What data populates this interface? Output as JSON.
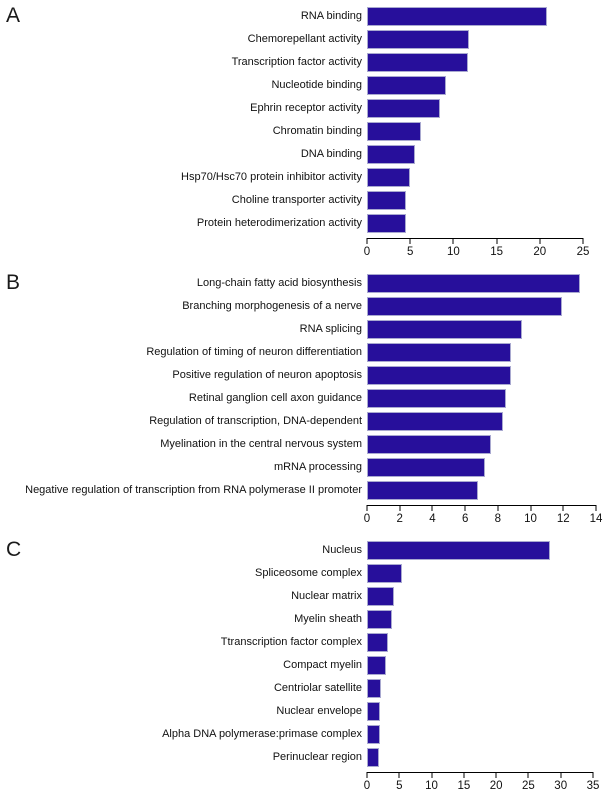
{
  "figure": {
    "background": "#ffffff",
    "bar_color": "#270f9b",
    "bar_border_color": "#a9a9d0",
    "axis_color": "#000000",
    "text_color": "#111111"
  },
  "chart_data": [
    {
      "type": "bar",
      "panel": "A",
      "orientation": "horizontal",
      "title": "",
      "xlabel": "",
      "ylabel": "",
      "grid": false,
      "legend": "none",
      "xlim": [
        0,
        25
      ],
      "xticks": [
        0,
        5,
        10,
        15,
        20,
        25
      ],
      "categories": [
        "RNA binding",
        "Chemorepellant activity",
        "Transcription factor activity",
        "Nucleotide binding",
        "Ephrin receptor activity",
        "Chromatin binding",
        "DNA binding",
        "Hsp70/Hsc70 protein inhibitor activity",
        "Choline transporter activity",
        "Protein heterodimerization activity"
      ],
      "values": [
        20.8,
        11.8,
        11.7,
        9.2,
        8.5,
        6.3,
        5.6,
        5.0,
        4.5,
        4.5
      ]
    },
    {
      "type": "bar",
      "panel": "B",
      "orientation": "horizontal",
      "title": "",
      "xlabel": "",
      "ylabel": "",
      "grid": false,
      "legend": "none",
      "xlim": [
        0,
        14
      ],
      "xticks": [
        0,
        2,
        4,
        6,
        8,
        10,
        12,
        14
      ],
      "categories": [
        "Long-chain fatty acid biosynthesis",
        "Branching morphogenesis of a nerve",
        "RNA splicing",
        "Regulation of timing of neuron differentiation",
        "Positive regulation of neuron apoptosis",
        "Retinal ganglion cell axon guidance",
        "Regulation of transcription, DNA-dependent",
        "Myelination in the central nervous system",
        "mRNA processing",
        "Negative regulation of transcription from RNA polymerase II promoter"
      ],
      "values": [
        13.0,
        11.9,
        9.5,
        8.8,
        8.8,
        8.5,
        8.3,
        7.6,
        7.2,
        6.8
      ]
    },
    {
      "type": "bar",
      "panel": "C",
      "orientation": "horizontal",
      "title": "",
      "xlabel": "",
      "ylabel": "",
      "grid": false,
      "legend": "none",
      "xlim": [
        0,
        35
      ],
      "xticks": [
        0,
        5,
        10,
        15,
        20,
        25,
        30,
        35
      ],
      "categories": [
        "Nucleus",
        "Spliceosome complex",
        "Nuclear matrix",
        "Myelin sheath",
        "Ttranscription factor complex",
        "Compact myelin",
        "Centriolar satellite",
        "Nuclear envelope",
        "Alpha DNA polymerase:primase complex",
        "Perinuclear region"
      ],
      "values": [
        28.3,
        5.4,
        4.2,
        3.9,
        3.2,
        2.9,
        2.1,
        2.0,
        2.0,
        1.8
      ]
    }
  ]
}
